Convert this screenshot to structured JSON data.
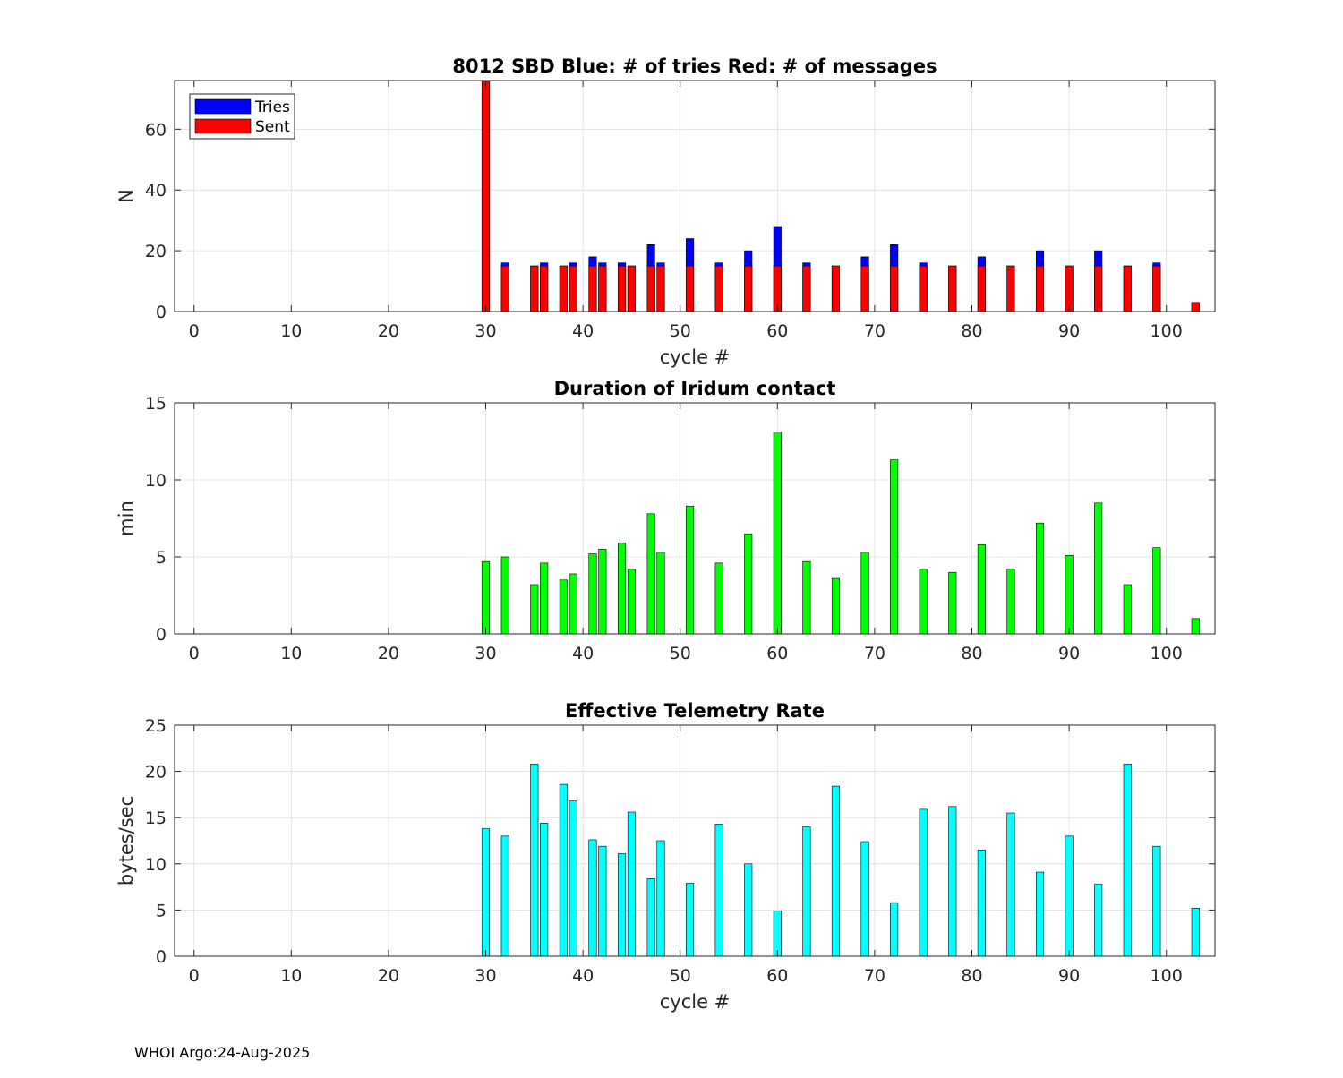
{
  "footer": "WHOI Argo:24-Aug-2025",
  "chart_data": [
    {
      "type": "bar",
      "title": "8012 SBD  Blue: # of tries   Red: # of messages",
      "xlabel": "cycle #",
      "ylabel": "N",
      "xlim": [
        -2,
        105
      ],
      "ylim": [
        0,
        76
      ],
      "xticks": [
        0,
        10,
        20,
        30,
        40,
        50,
        60,
        70,
        80,
        90,
        100
      ],
      "yticks": [
        0,
        20,
        40,
        60
      ],
      "grid": true,
      "legend": "top-left",
      "x": [
        30,
        32,
        35,
        36,
        38,
        39,
        41,
        42,
        44,
        45,
        47,
        48,
        51,
        54,
        57,
        60,
        63,
        66,
        69,
        72,
        75,
        78,
        81,
        84,
        87,
        90,
        93,
        96,
        99,
        103
      ],
      "series": [
        {
          "name": "Tries",
          "color": "#0000ff",
          "values": [
            76,
            16,
            15,
            16,
            15,
            16,
            18,
            16,
            16,
            15,
            22,
            16,
            24,
            16,
            20,
            28,
            16,
            15,
            18,
            22,
            16,
            15,
            18,
            15,
            20,
            15,
            20,
            15,
            16,
            3
          ]
        },
        {
          "name": "Sent",
          "color": "#ff0000",
          "values": [
            76,
            15,
            15,
            15,
            15,
            15,
            15,
            15,
            15,
            15,
            15,
            15,
            15,
            15,
            15,
            15,
            15,
            15,
            15,
            15,
            15,
            15,
            15,
            15,
            15,
            15,
            15,
            15,
            15,
            3
          ]
        }
      ]
    },
    {
      "type": "bar",
      "title": "Duration of Iridum contact",
      "xlabel": "",
      "ylabel": "min",
      "xlim": [
        -2,
        105
      ],
      "ylim": [
        0,
        15
      ],
      "xticks": [
        0,
        10,
        20,
        30,
        40,
        50,
        60,
        70,
        80,
        90,
        100
      ],
      "yticks": [
        0,
        5,
        10,
        15
      ],
      "grid": true,
      "color": "#00ff00",
      "x": [
        30,
        32,
        35,
        36,
        38,
        39,
        41,
        42,
        44,
        45,
        47,
        48,
        51,
        54,
        57,
        60,
        63,
        66,
        69,
        72,
        75,
        78,
        81,
        84,
        87,
        90,
        93,
        96,
        99,
        103
      ],
      "values": [
        4.7,
        5.0,
        3.2,
        4.6,
        3.5,
        3.9,
        5.2,
        5.5,
        5.9,
        4.2,
        7.8,
        5.3,
        8.3,
        4.6,
        6.5,
        13.1,
        4.7,
        3.6,
        5.3,
        11.3,
        4.2,
        4.0,
        5.8,
        4.2,
        7.2,
        5.1,
        8.5,
        3.2,
        5.6,
        1.0
      ]
    },
    {
      "type": "bar",
      "title": "Effective Telemetry Rate",
      "xlabel": "cycle #",
      "ylabel": "bytes/sec",
      "xlim": [
        -2,
        105
      ],
      "ylim": [
        0,
        25
      ],
      "xticks": [
        0,
        10,
        20,
        30,
        40,
        50,
        60,
        70,
        80,
        90,
        100
      ],
      "yticks": [
        0,
        5,
        10,
        15,
        20,
        25
      ],
      "grid": true,
      "color": "#00ffff",
      "x": [
        30,
        32,
        35,
        36,
        38,
        39,
        41,
        42,
        44,
        45,
        47,
        48,
        51,
        54,
        57,
        60,
        63,
        66,
        69,
        72,
        75,
        78,
        81,
        84,
        87,
        90,
        93,
        96,
        99,
        103
      ],
      "values": [
        13.8,
        13.0,
        20.8,
        14.4,
        18.6,
        16.8,
        12.6,
        11.9,
        11.1,
        15.6,
        8.4,
        12.5,
        7.9,
        14.3,
        10.0,
        4.9,
        14.0,
        18.4,
        12.4,
        5.8,
        15.9,
        16.2,
        11.5,
        15.5,
        9.1,
        13.0,
        7.8,
        20.8,
        11.9,
        5.2
      ]
    }
  ]
}
